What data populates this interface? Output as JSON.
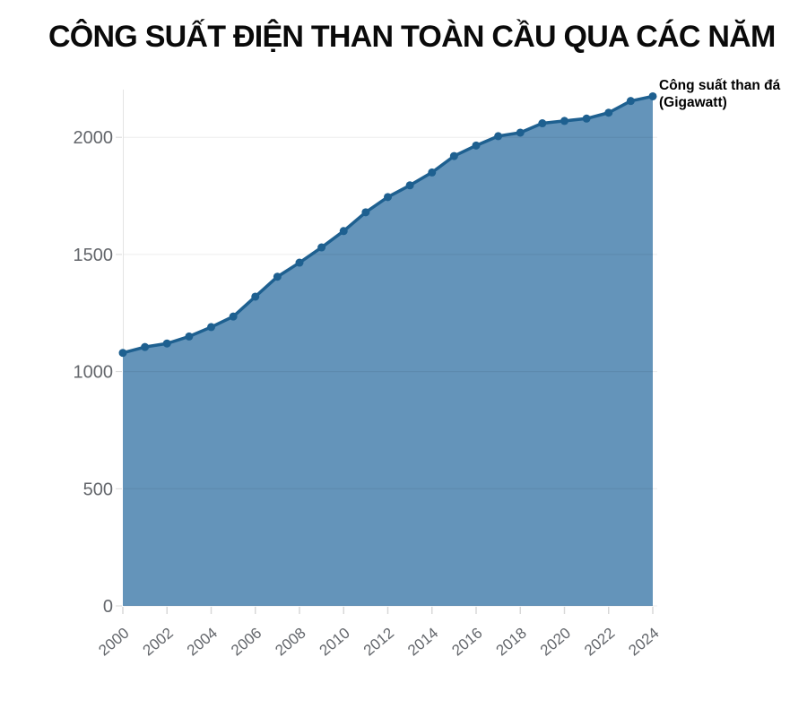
{
  "chart_data": {
    "type": "area",
    "title": "CÔNG SUẤT ĐIỆN THAN TOÀN CẦU QUA CÁC NĂM",
    "xlabel": "",
    "ylabel": "",
    "legend_position": "top-right",
    "legend": {
      "label": "Công suất than đá",
      "unit": "(Gigawatt)"
    },
    "x": [
      2000,
      2001,
      2002,
      2003,
      2004,
      2005,
      2006,
      2007,
      2008,
      2009,
      2010,
      2011,
      2012,
      2013,
      2014,
      2015,
      2016,
      2017,
      2018,
      2019,
      2020,
      2021,
      2022,
      2023,
      2024
    ],
    "series": [
      {
        "name": "Công suất than đá (Gigawatt)",
        "values": [
          1080,
          1105,
          1120,
          1150,
          1190,
          1235,
          1320,
          1405,
          1465,
          1530,
          1600,
          1680,
          1745,
          1795,
          1850,
          1920,
          1965,
          2005,
          2020,
          2060,
          2070,
          2080,
          2105,
          2155,
          2175
        ]
      }
    ],
    "xticks": [
      2000,
      2002,
      2004,
      2006,
      2008,
      2010,
      2012,
      2014,
      2016,
      2018,
      2020,
      2022,
      2024
    ],
    "yticks": [
      0,
      500,
      1000,
      1500,
      2000
    ],
    "ylim": [
      0,
      2200
    ],
    "grid": true,
    "colors": {
      "fill": "#6494ba",
      "line": "#1e6090",
      "dot": "#1e6090",
      "grid": "rgba(0,0,0,0.075)",
      "axis_line": "#e3e3e3",
      "tick": "#d8d8d8",
      "axis_text": "#63666b",
      "title_text": "#0a0a0a"
    }
  }
}
